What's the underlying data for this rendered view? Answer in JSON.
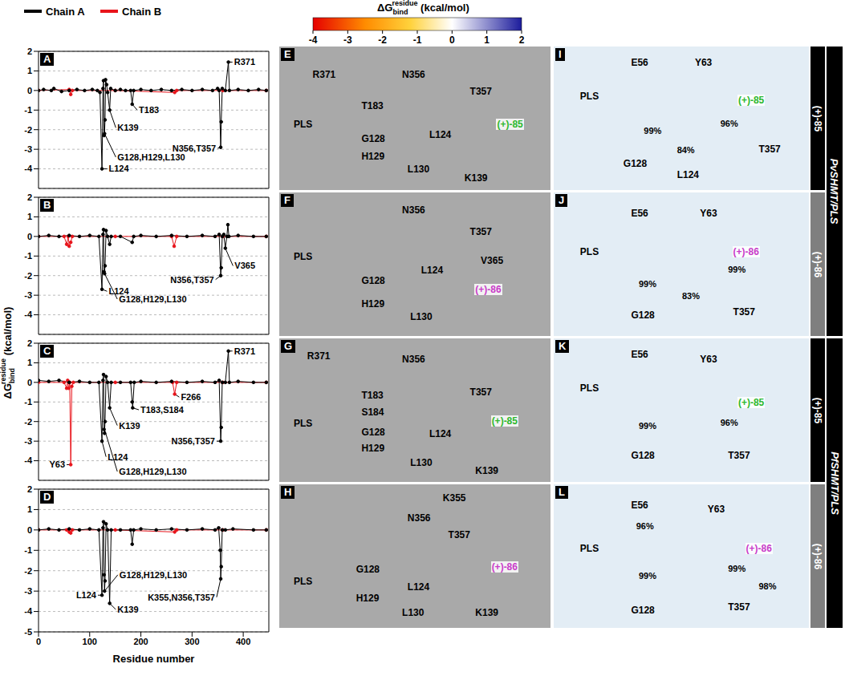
{
  "y_label": {
    "symbol": "ΔG",
    "sub": "bind",
    "sup": "residue",
    "unit": "(kcal/mol)"
  },
  "colorbar": {
    "symbol": "ΔG",
    "sub": "bind",
    "sup": "residue",
    "unit": "(kcal/mol)",
    "range": [
      -4,
      2
    ],
    "ticks": [
      -4,
      -3,
      -2,
      -1,
      0,
      1,
      2
    ],
    "stops": [
      {
        "value": -4,
        "color": "#e60000"
      },
      {
        "value": -2.5,
        "color": "#ff8c00"
      },
      {
        "value": -1.2,
        "color": "#ffd23c"
      },
      {
        "value": 0,
        "color": "#ffffff"
      },
      {
        "value": 2,
        "color": "#1c1c9c"
      }
    ]
  },
  "chart_data": [
    {
      "type": "line",
      "title": "A",
      "marker": "circle",
      "grid": true,
      "tick_labels": "y",
      "xlim": [
        0,
        450
      ],
      "xticks": [
        0,
        100,
        200,
        300,
        400
      ],
      "ylim": [
        -5,
        2
      ],
      "yticks": [
        -4,
        -3,
        -2,
        -1,
        0,
        1,
        2
      ],
      "series": [
        {
          "name": "Chain A",
          "color": "#000000",
          "x": [
            0,
            10,
            25,
            30,
            45,
            60,
            75,
            90,
            105,
            115,
            120,
            124,
            126,
            127,
            128,
            129,
            130,
            131,
            133,
            135,
            139,
            141,
            150,
            160,
            170,
            180,
            183,
            186,
            200,
            220,
            240,
            260,
            280,
            300,
            320,
            340,
            350,
            353,
            356,
            357,
            359,
            365,
            371,
            373,
            390,
            410,
            430,
            445
          ],
          "values": [
            0,
            0.05,
            0,
            0.1,
            -0.05,
            0,
            0.05,
            0,
            0.05,
            0,
            -0.1,
            -4.0,
            0.1,
            0.5,
            -2.3,
            -2.2,
            -1.5,
            0.55,
            0.3,
            -0.1,
            -1.0,
            0.1,
            0,
            0.05,
            0,
            0,
            -0.7,
            0,
            0.05,
            0,
            0.05,
            0,
            0.05,
            0,
            0.05,
            0,
            0.1,
            0,
            -2.9,
            -1.6,
            0.1,
            0,
            1.45,
            0,
            0.05,
            0,
            0.05,
            0
          ]
        },
        {
          "name": "Chain B",
          "color": "#e8141b",
          "x": [
            0,
            60,
            63,
            66,
            150,
            266,
            270,
            360,
            445
          ],
          "values": [
            0,
            0.05,
            -0.2,
            0,
            0,
            -0.1,
            0,
            0,
            0
          ]
        }
      ],
      "annotations": [
        {
          "text": "R371",
          "x": 371,
          "y": 1.45
        },
        {
          "text": "T183",
          "x": 183,
          "y": -0.7
        },
        {
          "text": "K139",
          "x": 139,
          "y": -1.0
        },
        {
          "text": "N356,T357",
          "x": 356,
          "y": -2.9
        },
        {
          "text": "L124",
          "x": 124,
          "y": -4.0
        },
        {
          "text": "G128,H129,L130",
          "x": 129,
          "y": -2.2
        }
      ]
    },
    {
      "type": "line",
      "title": "B",
      "marker": "circle",
      "grid": true,
      "tick_labels": "y",
      "xlim": [
        0,
        450
      ],
      "xticks": [
        0,
        100,
        200,
        300,
        400
      ],
      "ylim": [
        -5,
        2
      ],
      "yticks": [
        -4,
        -3,
        -2,
        -1,
        0,
        1,
        2
      ],
      "series": [
        {
          "name": "Chain A",
          "color": "#000000",
          "x": [
            0,
            20,
            40,
            60,
            80,
            100,
            118,
            124,
            126,
            127,
            128,
            129,
            130,
            132,
            135,
            139,
            142,
            160,
            183,
            186,
            200,
            230,
            260,
            290,
            320,
            345,
            353,
            356,
            357,
            359,
            362,
            365,
            368,
            370,
            372,
            390,
            420,
            445
          ],
          "values": [
            0,
            0.05,
            0,
            0.05,
            0,
            0.05,
            0,
            -2.7,
            0.1,
            0.35,
            -1.8,
            -1.9,
            -1.5,
            0.3,
            0,
            -0.4,
            0,
            0,
            -0.3,
            0,
            0.05,
            0,
            0.05,
            0,
            0.05,
            0,
            0.1,
            -2.0,
            -1.6,
            0,
            0.1,
            -0.6,
            0,
            0.6,
            0,
            0.05,
            0,
            0
          ]
        },
        {
          "name": "Chain B",
          "color": "#e8141b",
          "x": [
            0,
            50,
            55,
            58,
            60,
            63,
            66,
            150,
            260,
            265,
            270,
            360,
            445
          ],
          "values": [
            0,
            0,
            -0.4,
            0,
            -0.5,
            -0.3,
            0,
            0,
            0,
            -0.5,
            0,
            0,
            0
          ]
        }
      ],
      "annotations": [
        {
          "text": "L124",
          "x": 124,
          "y": -2.7
        },
        {
          "text": "G128,H129,L130",
          "x": 129,
          "y": -1.9
        },
        {
          "text": "N356,T357",
          "x": 356,
          "y": -2.0
        },
        {
          "text": "V365",
          "x": 365,
          "y": -0.6
        }
      ]
    },
    {
      "type": "line",
      "title": "C",
      "marker": "circle",
      "grid": true,
      "tick_labels": "y",
      "xlim": [
        0,
        450
      ],
      "xticks": [
        0,
        100,
        200,
        300,
        400
      ],
      "ylim": [
        -5,
        2
      ],
      "yticks": [
        -4,
        -3,
        -2,
        -1,
        0,
        1,
        2
      ],
      "series": [
        {
          "name": "Chain A",
          "color": "#000000",
          "x": [
            0,
            20,
            40,
            60,
            80,
            100,
            118,
            124,
            126,
            127,
            128,
            129,
            130,
            132,
            135,
            139,
            142,
            160,
            180,
            183,
            184,
            187,
            200,
            230,
            260,
            290,
            320,
            345,
            353,
            356,
            357,
            359,
            365,
            371,
            373,
            390,
            420,
            445
          ],
          "values": [
            0.1,
            0.05,
            0.1,
            0,
            0.05,
            0,
            0,
            -3.0,
            0.1,
            0.4,
            -2.4,
            -2.6,
            -2.0,
            0.3,
            0,
            -1.3,
            0,
            0,
            0,
            -1.0,
            -1.3,
            0,
            0.05,
            0,
            0.05,
            0,
            0.05,
            0,
            0.1,
            -3.0,
            -2.3,
            0,
            0,
            1.6,
            0,
            0.05,
            0,
            0
          ]
        },
        {
          "name": "Chain B",
          "color": "#e8141b",
          "x": [
            0,
            50,
            55,
            57,
            59,
            61,
            63,
            65,
            68,
            150,
            262,
            266,
            270,
            360,
            445
          ],
          "values": [
            0,
            0,
            -0.3,
            0.1,
            -0.3,
            0,
            -4.2,
            -0.2,
            0,
            0,
            0,
            -0.6,
            0,
            0,
            0
          ]
        }
      ],
      "annotations": [
        {
          "text": "R371",
          "x": 371,
          "y": 1.6
        },
        {
          "text": "T183,S184",
          "x": 184,
          "y": -1.3
        },
        {
          "text": "K139",
          "x": 139,
          "y": -1.3
        },
        {
          "text": "F266",
          "x": 266,
          "y": -0.6
        },
        {
          "text": "Y63",
          "x": 63,
          "y": -4.2
        },
        {
          "text": "L124",
          "x": 124,
          "y": -3.0
        },
        {
          "text": "G128,H129,L130",
          "x": 129,
          "y": -2.4
        },
        {
          "text": "N356,T357",
          "x": 356,
          "y": -3.0
        }
      ]
    },
    {
      "type": "line",
      "title": "D",
      "marker": "circle",
      "grid": true,
      "tick_labels": true,
      "x_label": "Residue number",
      "xlim": [
        0,
        450
      ],
      "xticks": [
        0,
        100,
        200,
        300,
        400
      ],
      "ylim": [
        -5,
        2
      ],
      "yticks": [
        -5,
        -4,
        -3,
        -2,
        -1,
        0,
        1,
        2
      ],
      "series": [
        {
          "name": "Chain A",
          "color": "#000000",
          "x": [
            0,
            20,
            40,
            60,
            80,
            100,
            118,
            124,
            126,
            127,
            128,
            129,
            130,
            132,
            135,
            139,
            142,
            160,
            180,
            183,
            186,
            200,
            230,
            260,
            290,
            320,
            345,
            352,
            355,
            356,
            357,
            359,
            365,
            380,
            420,
            445
          ],
          "values": [
            0,
            0.05,
            0,
            0.05,
            0,
            0.05,
            0,
            -3.2,
            0.1,
            0.4,
            -2.2,
            -3.0,
            -2.5,
            0.3,
            0,
            -3.6,
            0,
            0,
            0,
            -0.7,
            0,
            0.05,
            0,
            0.05,
            0,
            0.05,
            0,
            0.1,
            -1.0,
            -2.4,
            -1.8,
            0,
            0,
            0.05,
            0,
            0
          ]
        },
        {
          "name": "Chain B",
          "color": "#e8141b",
          "x": [
            0,
            55,
            60,
            63,
            66,
            150,
            266,
            270,
            360,
            445
          ],
          "values": [
            0,
            0,
            -0.1,
            -0.15,
            0,
            0,
            -0.1,
            0,
            0,
            0
          ]
        }
      ],
      "annotations": [
        {
          "text": "L124",
          "x": 124,
          "y": -3.2
        },
        {
          "text": "K139",
          "x": 139,
          "y": -3.6
        },
        {
          "text": "G128,H129,L130",
          "x": 129,
          "y": -3.0
        },
        {
          "text": "K355,N356,T357",
          "x": 356,
          "y": -2.4
        }
      ]
    }
  ],
  "structure_panels": [
    {
      "letter": "E",
      "ligand": "(+)-85",
      "ligand_color": "#2db82d",
      "labels": [
        "R371",
        "N356",
        "T357",
        "T183",
        "(+)-85",
        "PLS",
        "G128",
        "L124",
        "H129",
        "L130",
        "K139"
      ]
    },
    {
      "letter": "F",
      "ligand": "(+)-86",
      "ligand_color": "#c93cc9",
      "labels": [
        "N356",
        "T357",
        "PLS",
        "G128",
        "L124",
        "V365",
        "(+)-86",
        "H129",
        "L130"
      ]
    },
    {
      "letter": "G",
      "ligand": "(+)-85",
      "ligand_color": "#2db82d",
      "labels": [
        "R371",
        "N356",
        "T183",
        "T357",
        "S184",
        "PLS",
        "(+)-85",
        "G128",
        "L124",
        "H129",
        "L130",
        "K139"
      ]
    },
    {
      "letter": "H",
      "ligand": "(+)-86",
      "ligand_color": "#c93cc9",
      "labels": [
        "K355",
        "N356",
        "T357",
        "PLS",
        "(+)-86",
        "G128",
        "L124",
        "H129",
        "L130",
        "K139"
      ]
    },
    {
      "letter": "I",
      "ligand": "(+)-85",
      "ligand_color": "#2db82d",
      "labels": [
        "E56",
        "Y63",
        "(+)-85",
        "PLS",
        "99%",
        "84%",
        "96%",
        "G128",
        "L124",
        "T357"
      ]
    },
    {
      "letter": "J",
      "ligand": "(+)-86",
      "ligand_color": "#c93cc9",
      "labels": [
        "E56",
        "Y63",
        "(+)-86",
        "PLS",
        "99%",
        "83%",
        "99%",
        "G128",
        "T357"
      ]
    },
    {
      "letter": "K",
      "ligand": "(+)-85",
      "ligand_color": "#2db82d",
      "labels": [
        "E56",
        "Y63",
        "(+)-85",
        "PLS",
        "99%",
        "96%",
        "G128",
        "T357"
      ]
    },
    {
      "letter": "L",
      "ligand": "(+)-86",
      "ligand_color": "#c93cc9",
      "labels": [
        "E56",
        "Y63",
        "96%",
        "(+)-86",
        "PLS",
        "99%",
        "99%",
        "98%",
        "G128",
        "T357"
      ]
    }
  ],
  "side_labels": {
    "rows": [
      {
        "text": "(+)-85",
        "color": "#000000"
      },
      {
        "text": "(+)-86",
        "color": "#7f7f7f"
      },
      {
        "text": "(+)-85",
        "color": "#000000"
      },
      {
        "text": "(+)-86",
        "color": "#7f7f7f"
      }
    ],
    "groups": [
      "PvSHMT/PLS",
      "PfSHMT/PLS"
    ]
  }
}
